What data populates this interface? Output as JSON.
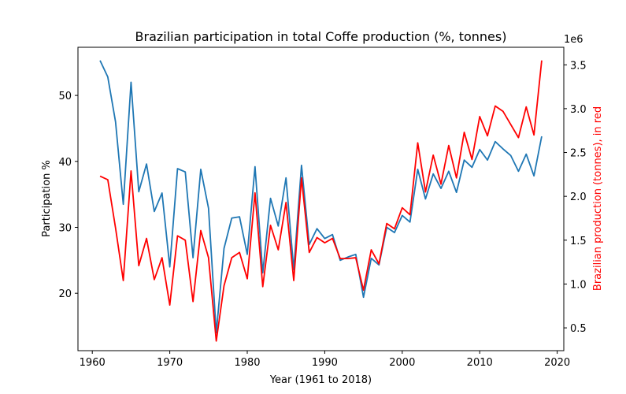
{
  "chart_data": {
    "type": "line",
    "title": "Brazilian participation in total Coffe production (%, tonnes)",
    "xlabel": "Year (1961 to 2018)",
    "ylabel": "Participation %",
    "ylabel_right": "Brazilian production (tonnes), in red",
    "right_axis_multiplier": "1e6",
    "xlim": [
      1958.15,
      2020.85
    ],
    "ylim": [
      11.3,
      57.3
    ],
    "ylim_right": [
      0.24,
      3.7
    ],
    "x_ticks": [
      1960,
      1970,
      1980,
      1990,
      2000,
      2010,
      2020
    ],
    "y_ticks": [
      20,
      30,
      40,
      50
    ],
    "y_ticks_right": [
      0.5,
      1.0,
      1.5,
      2.0,
      2.5,
      3.0,
      3.5
    ],
    "x_tick_labels": [
      "1960",
      "1970",
      "1980",
      "1990",
      "2000",
      "2010",
      "2020"
    ],
    "y_tick_labels": [
      "20",
      "30",
      "40",
      "50"
    ],
    "y_tick_labels_right": [
      "0.5",
      "1.0",
      "1.5",
      "2.0",
      "2.5",
      "3.0",
      "3.5"
    ],
    "grid": false,
    "x": [
      1961,
      1962,
      1963,
      1964,
      1965,
      1966,
      1967,
      1968,
      1969,
      1970,
      1971,
      1972,
      1973,
      1974,
      1975,
      1976,
      1977,
      1978,
      1979,
      1980,
      1981,
      1982,
      1983,
      1984,
      1985,
      1986,
      1987,
      1988,
      1989,
      1990,
      1991,
      1992,
      1993,
      1994,
      1995,
      1996,
      1997,
      1998,
      1999,
      2000,
      2001,
      2002,
      2003,
      2004,
      2005,
      2006,
      2007,
      2008,
      2009,
      2010,
      2011,
      2012,
      2013,
      2014,
      2015,
      2016,
      2017,
      2018
    ],
    "series": [
      {
        "axis": "left",
        "color": "#1f77b4",
        "values": [
          55.3,
          52.8,
          46.0,
          33.5,
          52.0,
          35.4,
          39.6,
          32.4,
          35.2,
          24.0,
          38.9,
          38.4,
          25.4,
          38.8,
          32.9,
          14.0,
          26.8,
          31.4,
          31.6,
          25.9,
          39.2,
          23.1,
          34.4,
          30.2,
          37.5,
          23.6,
          39.4,
          27.4,
          29.8,
          28.3,
          28.9,
          25.0,
          25.5,
          25.9,
          19.4,
          25.3,
          24.3,
          30.0,
          29.2,
          31.8,
          30.8,
          38.8,
          34.3,
          38.1,
          35.9,
          38.5,
          35.3,
          40.2,
          39.1,
          41.8,
          40.2,
          43.0,
          41.9,
          40.9,
          38.5,
          41.1,
          37.8,
          43.8
        ]
      },
      {
        "axis": "right",
        "color": "#ff0000",
        "values": [
          2.23,
          2.19,
          1.64,
          1.04,
          2.29,
          1.21,
          1.52,
          1.05,
          1.3,
          0.76,
          1.55,
          1.5,
          0.8,
          1.61,
          1.3,
          0.35,
          0.98,
          1.3,
          1.36,
          1.06,
          2.04,
          0.97,
          1.67,
          1.39,
          1.93,
          1.04,
          2.21,
          1.36,
          1.53,
          1.47,
          1.52,
          1.29,
          1.29,
          1.3,
          0.93,
          1.39,
          1.23,
          1.69,
          1.63,
          1.87,
          1.79,
          2.61,
          2.05,
          2.47,
          2.14,
          2.58,
          2.21,
          2.73,
          2.42,
          2.91,
          2.69,
          3.03,
          2.97,
          2.82,
          2.67,
          3.02,
          2.7,
          3.55
        ]
      }
    ]
  }
}
